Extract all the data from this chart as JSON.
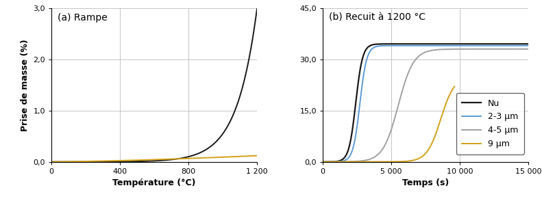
{
  "fig_width": 7.91,
  "fig_height": 2.94,
  "dpi": 100,
  "panel_a_label": "(a) Rampe",
  "panel_b_label": "(b) Recuit à 1200 °C",
  "xlabel_a": "Température (°C)",
  "xlabel_b": "Temps (s)",
  "ylabel": "Prise de masse (%)",
  "xlim_a": [
    0,
    1200
  ],
  "ylim_a": [
    0.0,
    3.0
  ],
  "xticks_a": [
    0,
    400,
    800,
    1200
  ],
  "xtick_labels_a": [
    "0",
    "400",
    "800",
    "1 200"
  ],
  "yticks_a": [
    0.0,
    1.0,
    2.0,
    3.0
  ],
  "ytick_labels_a": [
    "0,0",
    "1,0",
    "2,0",
    "3,0"
  ],
  "xlim_b": [
    0,
    15000
  ],
  "ylim_b": [
    0.0,
    45.0
  ],
  "xticks_b": [
    0,
    5000,
    10000,
    15000
  ],
  "xtick_labels_b": [
    "0",
    "5 000",
    "10 000",
    "15 000"
  ],
  "yticks_b": [
    0.0,
    15.0,
    30.0,
    45.0
  ],
  "ytick_labels_b": [
    "0,0",
    "15,0",
    "30,0",
    "45,0"
  ],
  "grid_color": "#bbbbbb",
  "grid_linewidth": 0.6,
  "color_black": "#1a1a1a",
  "color_blue": "#5b9bd5",
  "color_gray": "#a0a0a0",
  "color_orange": "#d4a017",
  "legend_labels": [
    "Nu",
    "2-3 μm",
    "4-5 μm",
    "9 μm"
  ],
  "label_fontsize": 9,
  "tick_fontsize": 8,
  "panel_label_fontsize": 10,
  "legend_fontsize": 9,
  "xlabel_fontweight": "bold",
  "ylabel_fontweight": "bold",
  "linewidth": 1.4
}
